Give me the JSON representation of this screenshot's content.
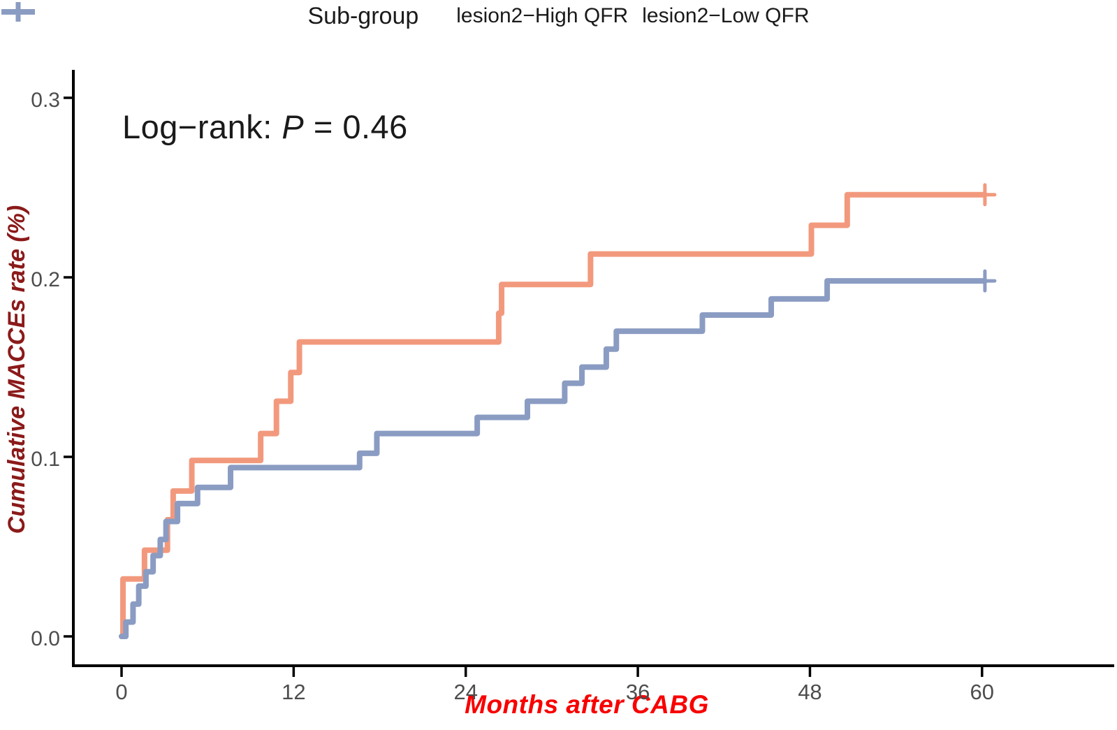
{
  "legend": {
    "title": "Sub-group"
  },
  "annotation": {
    "prefix": "Log−rank: ",
    "p_symbol": "P",
    "value": " = 0.46"
  },
  "chart_data": {
    "type": "line",
    "subtype": "kaplan-meier-cumulative-incidence-step",
    "legend_title": "Sub-group",
    "legend_position": "top-center",
    "annotation": "Log−rank: P = 0.46",
    "xlabel": "Months after CABG",
    "ylabel": "Cumulative MACCEs rate (%)",
    "grid": "off",
    "xlim": [
      0,
      69
    ],
    "ylim": [
      0,
      0.316
    ],
    "x_ticks": [
      {
        "value": 0,
        "label": "0"
      },
      {
        "value": 12,
        "label": "12"
      },
      {
        "value": 24,
        "label": "24"
      },
      {
        "value": 36,
        "label": "36"
      },
      {
        "value": 48,
        "label": "48"
      },
      {
        "value": 60,
        "label": "60"
      }
    ],
    "y_ticks": [
      {
        "value": 0.0,
        "label": "0.0"
      },
      {
        "value": 0.1,
        "label": "0.1"
      },
      {
        "value": 0.2,
        "label": "0.2"
      },
      {
        "value": 0.3,
        "label": "0.3"
      }
    ],
    "colors": {
      "axis": "#000000",
      "tick_labels": "#4D4D4D",
      "ylabel": "#8B1A1A",
      "xlabel": "#F80000",
      "annotation": "#1a1a1a"
    },
    "series": [
      {
        "name": "lesion2−High QFR",
        "color": "#F2997D",
        "censored_end": true,
        "censor_month": 60.2,
        "points": [
          [
            0,
            0.0
          ],
          [
            0.1,
            0.032
          ],
          [
            1.6,
            0.048
          ],
          [
            3.2,
            0.065
          ],
          [
            3.6,
            0.081
          ],
          [
            4.9,
            0.098
          ],
          [
            9.7,
            0.113
          ],
          [
            10.8,
            0.131
          ],
          [
            11.8,
            0.147
          ],
          [
            12.4,
            0.164
          ],
          [
            26.3,
            0.18
          ],
          [
            26.5,
            0.196
          ],
          [
            32.7,
            0.213
          ],
          [
            48.1,
            0.229
          ],
          [
            50.6,
            0.246
          ],
          [
            60.2,
            0.246
          ]
        ]
      },
      {
        "name": "lesion2−Low QFR",
        "color": "#8B9CC3",
        "censored_end": true,
        "censor_month": 60.2,
        "points": [
          [
            0,
            0.0
          ],
          [
            0.3,
            0.008
          ],
          [
            0.8,
            0.018
          ],
          [
            1.2,
            0.028
          ],
          [
            1.7,
            0.036
          ],
          [
            2.2,
            0.045
          ],
          [
            2.7,
            0.054
          ],
          [
            3.1,
            0.064
          ],
          [
            3.9,
            0.074
          ],
          [
            5.3,
            0.083
          ],
          [
            7.6,
            0.094
          ],
          [
            16.6,
            0.102
          ],
          [
            17.8,
            0.113
          ],
          [
            24.8,
            0.122
          ],
          [
            28.3,
            0.131
          ],
          [
            30.9,
            0.141
          ],
          [
            32.1,
            0.15
          ],
          [
            33.8,
            0.16
          ],
          [
            34.5,
            0.17
          ],
          [
            40.5,
            0.179
          ],
          [
            45.3,
            0.188
          ],
          [
            49.2,
            0.198
          ],
          [
            60.2,
            0.198
          ]
        ]
      }
    ]
  }
}
